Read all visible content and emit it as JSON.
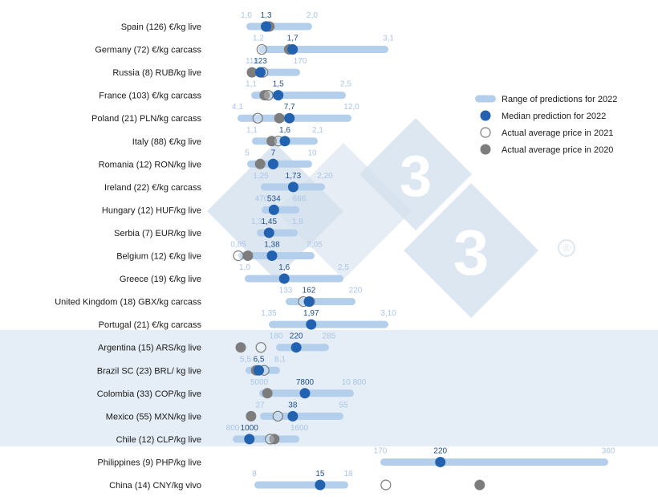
{
  "chart_data": {
    "type": "range-dot",
    "colors": {
      "range": "#b3cfeb",
      "median": "#2362b0",
      "median_label": "#1f4f8a",
      "range_label": "#a9c6e6",
      "actual_2021_fill": "#ffffff",
      "actual_2021_stroke": "#7a7a7a",
      "actual_2020": "#7d7d7d",
      "band": "#e5edf6",
      "watermark": "#dde7f2"
    },
    "legend": [
      {
        "key": "range",
        "label": "Range of predictions for 2022"
      },
      {
        "key": "median",
        "label": "Median prediction for 2022"
      },
      {
        "key": "a2021",
        "label": "Actual average price in 2021"
      },
      {
        "key": "a2020",
        "label": "Actual average price in 2020"
      }
    ],
    "watermark_mark": "®",
    "rows": [
      {
        "label": "Spain (126) €/kg live",
        "min": 1.0,
        "max": 2.0,
        "median": 1.3,
        "a2021": 1.3,
        "a2020": 1.35,
        "min_label": "1,0",
        "max_label": "2,0",
        "median_label": "1,3",
        "band": false
      },
      {
        "label": "Germany (72) €/kg carcass",
        "min": 1.2,
        "max": 3.1,
        "median": 1.7,
        "a2021": 1.25,
        "a2020": 1.65,
        "min_label": "1,2",
        "max_label": "3,1",
        "median_label": "1,7",
        "band": false
      },
      {
        "label": "Russia (8) RUB/kg live",
        "min": 113,
        "max": 170,
        "median": 123,
        "a2021": 126,
        "a2020": 113,
        "min_label": "113",
        "max_label": "170",
        "median_label": "123",
        "band": false
      },
      {
        "label": "France (103) €/kg carcass",
        "min": 1.1,
        "max": 2.5,
        "median": 1.5,
        "a2021": 1.35,
        "a2020": 1.3,
        "min_label": "1,1",
        "max_label": "2,5",
        "median_label": "1,5",
        "band": false
      },
      {
        "label": "Poland (21) PLN/kg carcass",
        "min": 4.1,
        "max": 12.0,
        "median": 7.7,
        "a2021": 5.5,
        "a2020": 7.0,
        "min_label": "4,1",
        "max_label": "12,0",
        "median_label": "7,7",
        "band": false
      },
      {
        "label": "Italy (88) €/kg live",
        "min": 1.1,
        "max": 2.1,
        "median": 1.6,
        "a2021": 1.5,
        "a2020": 1.4,
        "min_label": "1,1",
        "max_label": "2,1",
        "median_label": "1,6",
        "band": false
      },
      {
        "label": "Romania (12) RON/kg live",
        "min": 5,
        "max": 10,
        "median": 7,
        "a2021": 7.0,
        "a2020": 6.0,
        "min_label": "5",
        "max_label": "10",
        "median_label": "7",
        "band": false
      },
      {
        "label": "Ireland (22) €/kg carcass",
        "min": 1.25,
        "max": 2.2,
        "median": 1.73,
        "a2021": null,
        "a2020": null,
        "min_label": "1,25",
        "max_label": "2,20",
        "median_label": "1,73",
        "band": false
      },
      {
        "label": "Hungary (12) HUF/kg live",
        "min": 470,
        "max": 666,
        "median": 534,
        "a2021": null,
        "a2020": null,
        "min_label": "470",
        "max_label": "666",
        "median_label": "534",
        "band": false
      },
      {
        "label": "Serbia (7) EUR/kg live",
        "min": 1.3,
        "max": 1.8,
        "median": 1.45,
        "a2021": null,
        "a2020": null,
        "min_label": "1,3",
        "max_label": "1,8",
        "median_label": "1,45",
        "band": false
      },
      {
        "label": "Belgium (12) €/kg live",
        "min": 0.85,
        "max": 2.05,
        "median": 1.38,
        "a2021": 0.85,
        "a2020": 1.0,
        "min_label": "0,85",
        "max_label": "2,05",
        "median_label": "1,38",
        "band": false
      },
      {
        "label": "Greece (19) €/kg live",
        "min": 1.0,
        "max": 2.5,
        "median": 1.6,
        "a2021": null,
        "a2020": null,
        "min_label": "1,0",
        "max_label": "2,5",
        "median_label": "1,6",
        "band": false
      },
      {
        "label": "United Kingdom (18) GBX/kg carcass",
        "min": 133,
        "max": 220,
        "median": 162,
        "a2021": 155,
        "a2020": 163,
        "min_label": "133",
        "max_label": "220",
        "median_label": "162",
        "band": false
      },
      {
        "label": "Portugal (21) €/kg carcass",
        "min": 1.35,
        "max": 3.1,
        "median": 1.97,
        "a2021": null,
        "a2020": null,
        "min_label": "1,35",
        "max_label": "3,10",
        "median_label": "1,97",
        "band": false
      },
      {
        "label": "Argentina (15) ARS/kg live",
        "min": 180,
        "max": 285,
        "median": 220,
        "a2021": 150,
        "a2020": 110,
        "min_label": "180",
        "max_label": "285",
        "median_label": "220",
        "band": true
      },
      {
        "label": "Brazil SC (23) BRL/ kg live",
        "min": 5.5,
        "max": 8.1,
        "median": 6.5,
        "a2021": 6.9,
        "a2020": 6.3,
        "min_label": "5,5",
        "max_label": "8,1",
        "median_label": "6,5",
        "band": true
      },
      {
        "label": "Colombia (33) COP/kg live",
        "min": 5000,
        "max": 10800,
        "median": 7800,
        "a2021": null,
        "a2020": 5500,
        "min_label": "5000",
        "max_label": "10 800",
        "median_label": "7800",
        "band": true
      },
      {
        "label": "Mexico (55) MXN/kg live",
        "min": 27,
        "max": 55,
        "median": 38,
        "a2021": 33,
        "a2020": 24,
        "min_label": "27",
        "max_label": "55",
        "median_label": "38",
        "band": true
      },
      {
        "label": "Chile (12) CLP/kg live",
        "min": 800,
        "max": 1600,
        "median": 1000,
        "a2021": 1250,
        "a2020": 1300,
        "min_label": "800",
        "max_label": "1600",
        "median_label": "1000",
        "band": true
      },
      {
        "label": "Philippines (9) PHP/kg live",
        "min": 170,
        "max": 360,
        "median": 220,
        "a2021": null,
        "a2020": null,
        "min_label": "170",
        "max_label": "360",
        "median_label": "220",
        "band": false
      },
      {
        "label": "China (14) CNY/kg vivo",
        "min": 8,
        "max": 18,
        "median": 15,
        "a2021": 22,
        "a2020": 32,
        "min_label": "8",
        "max_label": "18",
        "median_label": "15",
        "band": false
      }
    ]
  }
}
